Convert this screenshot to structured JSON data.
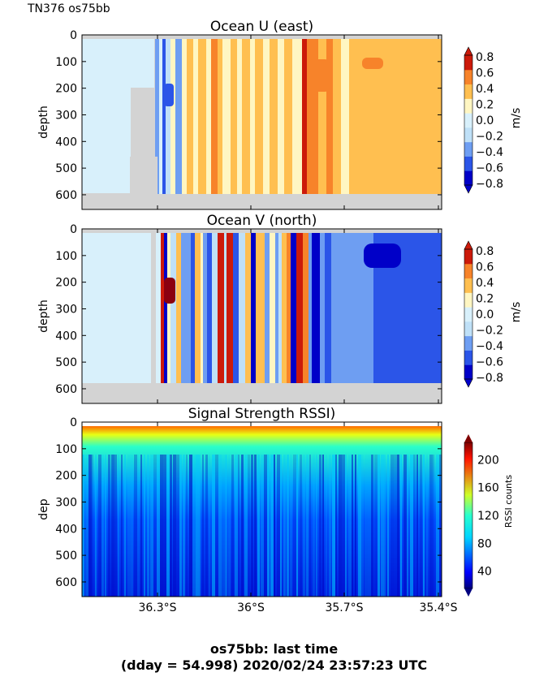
{
  "header": {
    "cruise_label": "TN376 os75bb"
  },
  "footer": {
    "line1": "os75bb: last time",
    "line2": "(dday = 54.998) 2020/02/24 23:57:23 UTC"
  },
  "chart_data": [
    {
      "type": "heatmap",
      "title": "Ocean U (east)",
      "ylabel": "depth",
      "ylim": [
        655,
        0
      ],
      "yticks": [
        0,
        100,
        200,
        300,
        400,
        500,
        600
      ],
      "xticks": [
        "36.3°S",
        "36°S",
        "35.7°S",
        "35.4°S"
      ],
      "colorbar": {
        "label": "m/s",
        "range": [
          -0.8,
          0.8
        ],
        "ticks": [
          "0.8",
          "0.6",
          "0.4",
          "0.2",
          "0.0",
          "−0.2",
          "−0.4",
          "−0.6",
          "−0.8"
        ]
      },
      "colors": {
        "-0.8": "#0000c8",
        "-0.6": "#2b55e8",
        "-0.4": "#6e9ef2",
        "-0.2": "#bfe0f7",
        "0.0": "#d8f0fb",
        "0.2": "#fff6c2",
        "0.4": "#ffbf50",
        "0.6": "#f7832a",
        "0.8": "#cc1a0a",
        "nodata": "#d3d3d3"
      }
    },
    {
      "type": "heatmap",
      "title": "Ocean V (north)",
      "ylabel": "depth",
      "ylim": [
        655,
        0
      ],
      "yticks": [
        0,
        100,
        200,
        300,
        400,
        500,
        600
      ],
      "xticks": [
        "36.3°S",
        "36°S",
        "35.7°S",
        "35.4°S"
      ],
      "colorbar": {
        "label": "m/s",
        "range": [
          -0.8,
          0.8
        ],
        "ticks": [
          "0.8",
          "0.6",
          "0.4",
          "0.2",
          "0.0",
          "−0.2",
          "−0.4",
          "−0.6",
          "−0.8"
        ]
      }
    },
    {
      "type": "heatmap",
      "title": "Signal Strength RSSI)",
      "ylabel": "dep",
      "ylim": [
        655,
        0
      ],
      "yticks": [
        0,
        100,
        200,
        300,
        400,
        500,
        600
      ],
      "xticks": [
        "36.3°S",
        "36°S",
        "35.7°S",
        "35.4°S"
      ],
      "xtick_labels_shown": true,
      "colorbar": {
        "label": "RSSI counts",
        "range": [
          15,
          225
        ],
        "ticks": [
          "200",
          "160",
          "120",
          "80",
          "40"
        ],
        "colormap": "jet"
      }
    }
  ]
}
